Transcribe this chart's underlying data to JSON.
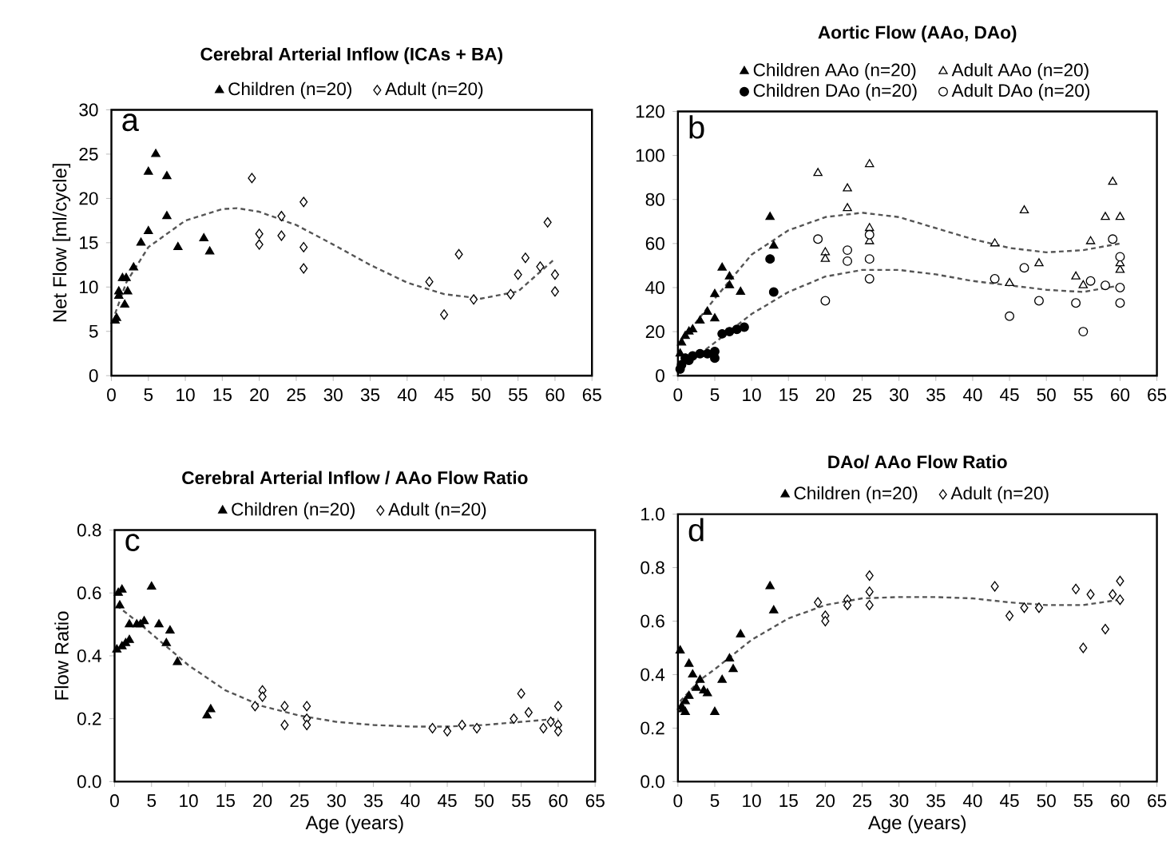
{
  "chart_data": [
    {
      "type": "scatter",
      "title": "Cerebral Arterial Inflow (ICAs + BA)",
      "ylabel": "Net Flow [ml/cycle]",
      "xlim": [
        0,
        65
      ],
      "xticks": [
        0,
        5,
        10,
        15,
        20,
        25,
        30,
        35,
        40,
        45,
        50,
        55,
        60,
        65
      ],
      "ylim": [
        0,
        30
      ],
      "yticks": [
        0,
        5,
        10,
        15,
        20,
        25,
        30
      ],
      "legend": "top",
      "annotations": [
        "a"
      ],
      "series": [
        {
          "name": "Children (n=20)",
          "color": "#000000",
          "marker": "triangle",
          "x": [
            0.5,
            0.7,
            1,
            1,
            1.5,
            1.8,
            2,
            2.2,
            3,
            4,
            5,
            5,
            6,
            7.5,
            7.5,
            9,
            12.5,
            13.3
          ],
          "values": [
            6.2,
            6.5,
            9.5,
            9,
            11,
            8,
            11,
            9.5,
            12.2,
            15,
            23,
            16.3,
            25,
            22.5,
            18,
            14.5,
            15.5,
            14
          ]
        },
        {
          "name": "Adult (n=20)",
          "color": "#000000",
          "marker": "diamond",
          "x": [
            19,
            20,
            20,
            23,
            23,
            26,
            26,
            26,
            43,
            45,
            47,
            49,
            54,
            55,
            56,
            58,
            59,
            60,
            60
          ],
          "values": [
            22.3,
            16,
            14.8,
            18,
            15.8,
            19.6,
            14.5,
            12.1,
            10.6,
            6.9,
            13.7,
            8.6,
            9.2,
            11.4,
            13.3,
            12.3,
            17.3,
            11.4,
            9.5
          ]
        },
        {
          "type": "line",
          "color": "#555555",
          "line_style": "dashed",
          "marker": "none",
          "x": [
            0.5,
            2,
            5,
            10,
            15,
            17,
            20,
            25,
            30,
            35,
            40,
            45,
            50,
            55,
            60
          ],
          "values": [
            7,
            10.5,
            14.5,
            17.5,
            18.8,
            18.9,
            18.5,
            17,
            14.8,
            12.5,
            10.5,
            9.2,
            8.7,
            9.5,
            13.2
          ]
        }
      ]
    },
    {
      "type": "scatter",
      "title": "Aortic Flow (AAo, DAo)",
      "xlim": [
        0,
        65
      ],
      "xticks": [
        0,
        5,
        10,
        15,
        20,
        25,
        30,
        35,
        40,
        45,
        50,
        55,
        60,
        65
      ],
      "ylim": [
        0,
        120
      ],
      "yticks": [
        0,
        20,
        40,
        60,
        80,
        100,
        120
      ],
      "legend": "top",
      "annotations": [
        "b"
      ],
      "series": [
        {
          "name": "Children AAo (n=20)",
          "color": "#000000",
          "marker": "triangle",
          "x": [
            0.3,
            0.5,
            1,
            1.5,
            2,
            3,
            4,
            5,
            5,
            6,
            7,
            7,
            8.5,
            12.5,
            13
          ],
          "values": [
            10,
            15,
            18,
            20,
            21,
            25,
            29,
            37,
            26,
            49,
            45,
            41,
            38,
            72,
            59
          ]
        },
        {
          "name": "Adult AAo (n=20)",
          "color": "#000000",
          "marker": "triangle",
          "x": [
            19,
            20,
            20,
            23,
            23,
            26,
            26,
            26,
            43,
            45,
            47,
            49,
            54,
            55,
            56,
            58,
            59,
            60,
            60,
            60
          ],
          "values": [
            92,
            56,
            53,
            85,
            76,
            96,
            67,
            61,
            60,
            42,
            75,
            51,
            45,
            41,
            61,
            72,
            88,
            72,
            48,
            51
          ]
        },
        {
          "name": "Children DAo (n=20)",
          "color": "#000000",
          "marker": "circle",
          "x": [
            0.3,
            0.5,
            1,
            1.5,
            2,
            3,
            4,
            5,
            5,
            6,
            7,
            8,
            9,
            12.5,
            13
          ],
          "values": [
            3,
            5,
            8,
            7,
            9,
            10,
            10,
            11,
            8,
            19,
            20,
            21,
            22,
            53,
            38
          ]
        },
        {
          "name": "Adult DAo (n=20)",
          "color": "#000000",
          "marker": "circle",
          "x": [
            19,
            20,
            23,
            23,
            26,
            26,
            26,
            43,
            45,
            47,
            49,
            54,
            55,
            56,
            58,
            59,
            60,
            60,
            60
          ],
          "values": [
            62,
            34,
            57,
            52,
            64,
            53,
            44,
            44,
            27,
            49,
            34,
            33,
            20,
            43,
            41,
            62,
            54,
            40,
            33
          ]
        },
        {
          "type": "line",
          "color": "#555555",
          "line_style": "dashed",
          "marker": "none",
          "x": [
            0.3,
            5,
            10,
            15,
            20,
            25,
            30,
            35,
            40,
            45,
            50,
            55,
            60
          ],
          "values": [
            15,
            35,
            55,
            66,
            72,
            74,
            72,
            67,
            62,
            58,
            56,
            57,
            60
          ]
        },
        {
          "type": "line",
          "color": "#555555",
          "line_style": "dashed",
          "marker": "none",
          "x": [
            0.3,
            5,
            10,
            15,
            20,
            25,
            30,
            35,
            40,
            45,
            50,
            55,
            60
          ],
          "values": [
            3,
            15,
            28,
            38,
            45,
            48,
            48,
            46,
            43,
            41,
            39,
            38,
            41
          ]
        }
      ]
    },
    {
      "type": "scatter",
      "title": "Cerebral Arterial Inflow / AAo Flow Ratio",
      "xlabel": "Age (years)",
      "ylabel": "Flow Ratio",
      "xlim": [
        0,
        65
      ],
      "xticks": [
        0,
        5,
        10,
        15,
        20,
        25,
        30,
        35,
        40,
        45,
        50,
        55,
        60,
        65
      ],
      "ylim": [
        0,
        0.8
      ],
      "yticks": [
        {
          "value": 0,
          "label": "0.0"
        },
        {
          "value": 0.2,
          "label": "0.2"
        },
        {
          "value": 0.4,
          "label": "0.4"
        },
        {
          "value": 0.6,
          "label": "0.6"
        },
        {
          "value": 0.8,
          "label": "0.8"
        }
      ],
      "legend": "top",
      "annotations": [
        "c"
      ],
      "series": [
        {
          "name": "Children (n=20)",
          "color": "#000000",
          "marker": "triangle",
          "x": [
            0.3,
            0.5,
            0.7,
            1,
            1,
            1.5,
            2,
            2,
            3,
            3.5,
            4,
            5,
            6,
            7,
            7.5,
            8.5,
            12.5,
            13
          ],
          "values": [
            0.42,
            0.6,
            0.56,
            0.61,
            0.43,
            0.44,
            0.45,
            0.5,
            0.5,
            0.5,
            0.51,
            0.62,
            0.5,
            0.44,
            0.48,
            0.38,
            0.21,
            0.23
          ]
        },
        {
          "name": "Adult (n=20)",
          "color": "#000000",
          "marker": "diamond",
          "x": [
            19,
            20,
            20,
            23,
            23,
            26,
            26,
            26,
            43,
            45,
            47,
            49,
            54,
            55,
            56,
            58,
            59,
            60,
            60,
            60
          ],
          "values": [
            0.24,
            0.29,
            0.27,
            0.24,
            0.18,
            0.24,
            0.2,
            0.18,
            0.17,
            0.16,
            0.18,
            0.17,
            0.2,
            0.28,
            0.22,
            0.17,
            0.19,
            0.24,
            0.18,
            0.16
          ]
        },
        {
          "type": "line",
          "color": "#555555",
          "line_style": "dashed",
          "marker": "none",
          "x": [
            0.3,
            3,
            5,
            10,
            15,
            20,
            25,
            30,
            35,
            40,
            45,
            50,
            55,
            60
          ],
          "values": [
            0.56,
            0.51,
            0.47,
            0.37,
            0.29,
            0.24,
            0.21,
            0.19,
            0.18,
            0.175,
            0.175,
            0.18,
            0.19,
            0.2
          ]
        }
      ]
    },
    {
      "type": "scatter",
      "title": "DAo/ AAo Flow Ratio",
      "xlabel": "Age (years)",
      "xlim": [
        0,
        65
      ],
      "xticks": [
        0,
        5,
        10,
        15,
        20,
        25,
        30,
        35,
        40,
        45,
        50,
        55,
        60,
        65
      ],
      "ylim": [
        0,
        1
      ],
      "yticks": [
        {
          "value": 0,
          "label": "0.0"
        },
        {
          "value": 0.2,
          "label": "0.2"
        },
        {
          "value": 0.4,
          "label": "0.4"
        },
        {
          "value": 0.6,
          "label": "0.6"
        },
        {
          "value": 0.8,
          "label": "0.8"
        },
        {
          "value": 1,
          "label": "1.0"
        }
      ],
      "legend": "top",
      "annotations": [
        "d"
      ],
      "series": [
        {
          "name": "Children (n=20)",
          "color": "#000000",
          "marker": "triangle",
          "x": [
            0.3,
            0.5,
            0.7,
            1,
            1,
            1.5,
            1.5,
            2,
            2.5,
            3,
            3.5,
            4,
            5,
            6,
            7,
            7.5,
            8.5,
            12.5,
            13
          ],
          "values": [
            0.49,
            0.28,
            0.27,
            0.3,
            0.26,
            0.32,
            0.44,
            0.4,
            0.35,
            0.38,
            0.34,
            0.33,
            0.26,
            0.38,
            0.46,
            0.42,
            0.55,
            0.73,
            0.64
          ]
        },
        {
          "name": "Adult (n=20)",
          "color": "#000000",
          "marker": "diamond",
          "x": [
            19,
            20,
            20,
            23,
            23,
            26,
            26,
            26,
            43,
            45,
            47,
            49,
            54,
            55,
            56,
            58,
            59,
            60,
            60
          ],
          "values": [
            0.67,
            0.62,
            0.6,
            0.68,
            0.66,
            0.77,
            0.71,
            0.66,
            0.73,
            0.62,
            0.65,
            0.65,
            0.72,
            0.5,
            0.7,
            0.57,
            0.7,
            0.75,
            0.68
          ]
        },
        {
          "type": "line",
          "color": "#555555",
          "line_style": "dashed",
          "marker": "none",
          "x": [
            0.3,
            3,
            5,
            10,
            15,
            20,
            25,
            30,
            35,
            40,
            45,
            50,
            55,
            60
          ],
          "values": [
            0.3,
            0.38,
            0.42,
            0.53,
            0.61,
            0.66,
            0.685,
            0.69,
            0.69,
            0.685,
            0.67,
            0.66,
            0.66,
            0.68
          ]
        }
      ]
    }
  ]
}
